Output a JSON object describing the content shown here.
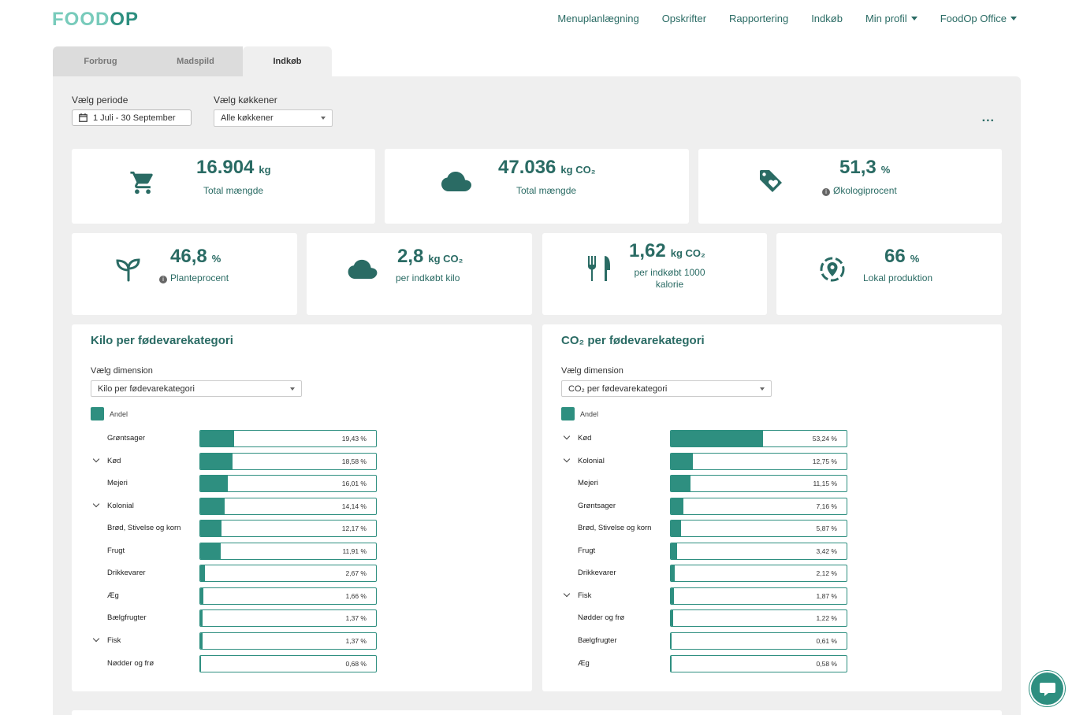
{
  "logo": {
    "part1": "FOOD",
    "part2": "OP"
  },
  "nav": [
    {
      "label": "Menuplanlægning",
      "dropdown": false
    },
    {
      "label": "Opskrifter",
      "dropdown": false
    },
    {
      "label": "Rapportering",
      "dropdown": false
    },
    {
      "label": "Indkøb",
      "dropdown": false
    },
    {
      "label": "Min profil",
      "dropdown": true
    },
    {
      "label": "FoodOp Office",
      "dropdown": true
    }
  ],
  "tabs": [
    {
      "label": "Forbrug",
      "active": false
    },
    {
      "label": "Madspild",
      "active": false
    },
    {
      "label": "Indkøb",
      "active": true
    }
  ],
  "filters": {
    "period_label": "Vælg periode",
    "period_value": "1 Juli - 30 September",
    "kitchen_label": "Vælg køkkener",
    "kitchen_value": "Alle køkkener",
    "more_label": "..."
  },
  "kpis_top": [
    {
      "icon": "cart-icon",
      "value": "16.904",
      "unit": "kg",
      "label": "Total mængde",
      "info": false
    },
    {
      "icon": "cloud-icon",
      "value": "47.036",
      "unit": "kg CO₂",
      "label": "Total mængde",
      "info": false
    },
    {
      "icon": "eco-tag-icon",
      "value": "51,3",
      "unit": "%",
      "label": "Økologiprocent",
      "info": true
    }
  ],
  "kpis_bottom": [
    {
      "icon": "sprout-icon",
      "value": "46,8",
      "unit": "%",
      "label": "Planteprocent",
      "info": true
    },
    {
      "icon": "cloud-icon",
      "value": "2,8",
      "unit": "kg CO₂",
      "label": "per indkøbt kilo",
      "info": false
    },
    {
      "icon": "cutlery-icon",
      "value": "1,62",
      "unit": "kg CO₂",
      "label": "per indkøbt 1000 kalorie",
      "info": false
    },
    {
      "icon": "location-icon",
      "value": "66",
      "unit": "%",
      "label": "Lokal produktion",
      "info": false
    }
  ],
  "chart_data": [
    {
      "type": "bar",
      "title": "Kilo per fødevarekategori",
      "dimension_label": "Vælg dimension",
      "dimension_value": "Kilo per fødevarekategori",
      "legend": "Andel",
      "categories": [
        "Grøntsager",
        "Kød",
        "Mejeri",
        "Kolonial",
        "Brød, Stivelse og korn",
        "Frugt",
        "Drikkevarer",
        "Æg",
        "Bælgfrugter",
        "Fisk",
        "Nødder og frø"
      ],
      "expandable": [
        false,
        true,
        false,
        true,
        false,
        false,
        false,
        false,
        false,
        true,
        false
      ],
      "values": [
        19.43,
        18.58,
        16.01,
        14.14,
        12.17,
        11.91,
        2.67,
        1.66,
        1.37,
        1.37,
        0.68
      ],
      "labels": [
        "19,43 %",
        "18,58 %",
        "16,01 %",
        "14,14 %",
        "12,17 %",
        "11,91 %",
        "2,67 %",
        "1,66 %",
        "1,37 %",
        "1,37 %",
        "0,68 %"
      ],
      "xlim": [
        0,
        100
      ]
    },
    {
      "type": "bar",
      "title": "CO₂ per fødevarekategori",
      "dimension_label": "Vælg dimension",
      "dimension_value": "CO₂ per fødevarekategori",
      "legend": "Andel",
      "categories": [
        "Kød",
        "Kolonial",
        "Mejeri",
        "Grøntsager",
        "Brød, Stivelse og korn",
        "Frugt",
        "Drikkevarer",
        "Fisk",
        "Nødder og frø",
        "Bælgfrugter",
        "Æg"
      ],
      "expandable": [
        true,
        true,
        false,
        false,
        false,
        false,
        false,
        true,
        false,
        false,
        false
      ],
      "values": [
        53.24,
        12.75,
        11.15,
        7.16,
        5.87,
        3.42,
        2.12,
        1.87,
        1.22,
        0.61,
        0.58
      ],
      "labels": [
        "53,24 %",
        "12,75 %",
        "11,15 %",
        "7,16 %",
        "5,87 %",
        "3,42 %",
        "2,12 %",
        "1,87 %",
        "1,22 %",
        "0,61 %",
        "0,58 %"
      ],
      "xlim": [
        0,
        100
      ]
    }
  ],
  "colors": {
    "primary": "#2e8f80",
    "dark": "#2a6b64",
    "logo_light": "#78cbbb",
    "panel": "#efefef"
  }
}
